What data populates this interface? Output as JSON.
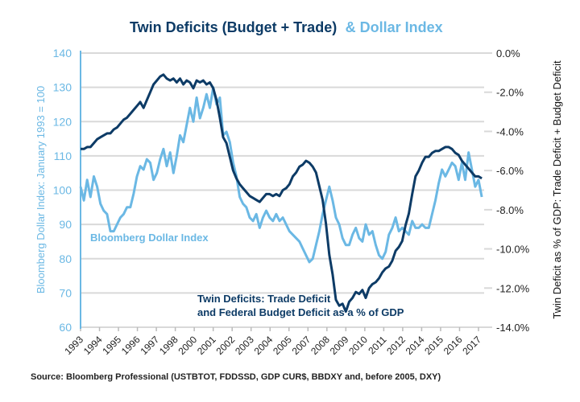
{
  "chart_data": {
    "type": "line",
    "title": {
      "part1": "Twin Deficits (Budget + Trade)",
      "part2": "& Dollar Index"
    },
    "colors": {
      "dollar": "#6bb8e4",
      "deficit": "#0d3b66",
      "grid": "#d9d9d9"
    },
    "y_left": {
      "label": "Bloomberg Dollar Index: January 1993 = 100",
      "range": [
        60,
        140
      ],
      "ticks": [
        "60",
        "70",
        "80",
        "90",
        "100",
        "110",
        "120",
        "130",
        "140"
      ]
    },
    "y_right": {
      "label": "Twin Deficit as % of GDP: Trade Deficit + Budget Deficit",
      "range": [
        -14,
        0
      ],
      "ticks": [
        "-14.0%",
        "-12.0%",
        "-10.0%",
        "-8.0%",
        "-6.0%",
        "-4.0%",
        "-2.0%",
        "0.0%"
      ]
    },
    "x_axis": {
      "range": [
        1993,
        2017.3
      ],
      "tick_labels": [
        "1993",
        "1994",
        "1995",
        "1996",
        "1997",
        "1998",
        "2000",
        "2001",
        "2002",
        "2003",
        "2004",
        "2005",
        "2007",
        "2008",
        "2009",
        "2010",
        "2011",
        "2012",
        "2014",
        "2015",
        "2016",
        "2017"
      ]
    },
    "grid": true,
    "annotations": {
      "dollar_label": "Bloomberg Dollar Index",
      "deficit_label_line1": "Twin Deficits: Trade Deficit",
      "deficit_label_line2": "and Federal Budget Deficit as a % of GDP"
    },
    "series": [
      {
        "name": "Bloomberg Dollar Index",
        "axis": "left",
        "x": [
          1993.0,
          1993.2,
          1993.4,
          1993.6,
          1993.8,
          1994.0,
          1994.2,
          1994.4,
          1994.6,
          1994.8,
          1995.0,
          1995.2,
          1995.4,
          1995.6,
          1995.8,
          1996.0,
          1996.2,
          1996.4,
          1996.6,
          1996.8,
          1997.0,
          1997.2,
          1997.4,
          1997.6,
          1997.8,
          1998.0,
          1998.2,
          1998.4,
          1998.6,
          1998.8,
          1999.0,
          1999.2,
          1999.4,
          1999.6,
          1999.8,
          2000.0,
          2000.2,
          2000.4,
          2000.6,
          2000.8,
          2001.0,
          2001.2,
          2001.4,
          2001.6,
          2001.8,
          2002.0,
          2002.2,
          2002.4,
          2002.6,
          2002.8,
          2003.0,
          2003.2,
          2003.4,
          2003.6,
          2003.8,
          2004.0,
          2004.2,
          2004.4,
          2004.6,
          2004.8,
          2005.0,
          2005.2,
          2005.4,
          2005.6,
          2005.8,
          2006.0,
          2006.2,
          2006.4,
          2006.6,
          2006.8,
          2007.0,
          2007.2,
          2007.4,
          2007.6,
          2007.8,
          2008.0,
          2008.2,
          2008.4,
          2008.6,
          2008.8,
          2009.0,
          2009.2,
          2009.4,
          2009.6,
          2009.8,
          2010.0,
          2010.2,
          2010.4,
          2010.6,
          2010.8,
          2011.0,
          2011.2,
          2011.4,
          2011.6,
          2011.8,
          2012.0,
          2012.2,
          2012.4,
          2012.6,
          2012.8,
          2013.0,
          2013.2,
          2013.4,
          2013.6,
          2013.8,
          2014.0,
          2014.2,
          2014.4,
          2014.6,
          2014.8,
          2015.0,
          2015.2,
          2015.4,
          2015.6,
          2015.8,
          2016.0,
          2016.2,
          2016.4,
          2016.6,
          2016.8,
          2017.0,
          2017.2
        ],
        "values": [
          101,
          97,
          103,
          98,
          104,
          101,
          96,
          94,
          93,
          88,
          88,
          90,
          92,
          93,
          95,
          95,
          99,
          104,
          107,
          106,
          109,
          108,
          103,
          105,
          109,
          112,
          107,
          111,
          105,
          110,
          116,
          114,
          119,
          124,
          120,
          127,
          121,
          124,
          128,
          124,
          130,
          125,
          127,
          116,
          117,
          114,
          108,
          104,
          98,
          96,
          95,
          92,
          91,
          93,
          89,
          92,
          94,
          92,
          91,
          93,
          91,
          92,
          90,
          88,
          87,
          86,
          85,
          83,
          81,
          79,
          80,
          84,
          88,
          93,
          97,
          101,
          97,
          92,
          90,
          86,
          84,
          84,
          87,
          89,
          86,
          85,
          90,
          87,
          88,
          84,
          81,
          80,
          82,
          87,
          89,
          92,
          88,
          89,
          88,
          87,
          91,
          89,
          89,
          90,
          89,
          89,
          93,
          97,
          102,
          106,
          104,
          106,
          108,
          107,
          103,
          108,
          103,
          111,
          106,
          101,
          103,
          98
        ]
      },
      {
        "name": "Twin Deficits: Trade Deficit and Federal Budget Deficit as a % of GDP",
        "axis": "right",
        "x": [
          1993.0,
          1993.2,
          1993.4,
          1993.6,
          1993.8,
          1994.0,
          1994.2,
          1994.4,
          1994.6,
          1994.8,
          1995.0,
          1995.2,
          1995.4,
          1995.6,
          1995.8,
          1996.0,
          1996.2,
          1996.4,
          1996.6,
          1996.8,
          1997.0,
          1997.2,
          1997.4,
          1997.6,
          1997.8,
          1998.0,
          1998.2,
          1998.4,
          1998.6,
          1998.8,
          1999.0,
          1999.2,
          1999.4,
          1999.6,
          1999.8,
          2000.0,
          2000.2,
          2000.4,
          2000.6,
          2000.8,
          2001.0,
          2001.2,
          2001.4,
          2001.6,
          2001.8,
          2002.0,
          2002.2,
          2002.4,
          2002.6,
          2002.8,
          2003.0,
          2003.2,
          2003.4,
          2003.6,
          2003.8,
          2004.0,
          2004.2,
          2004.4,
          2004.6,
          2004.8,
          2005.0,
          2005.2,
          2005.4,
          2005.6,
          2005.8,
          2006.0,
          2006.2,
          2006.4,
          2006.6,
          2006.8,
          2007.0,
          2007.2,
          2007.4,
          2007.6,
          2007.8,
          2008.0,
          2008.2,
          2008.4,
          2008.6,
          2008.8,
          2009.0,
          2009.2,
          2009.4,
          2009.6,
          2009.8,
          2010.0,
          2010.2,
          2010.4,
          2010.6,
          2010.8,
          2011.0,
          2011.2,
          2011.4,
          2011.6,
          2011.8,
          2012.0,
          2012.2,
          2012.4,
          2012.6,
          2012.8,
          2013.0,
          2013.2,
          2013.4,
          2013.6,
          2013.8,
          2014.0,
          2014.2,
          2014.4,
          2014.6,
          2014.8,
          2015.0,
          2015.2,
          2015.4,
          2015.6,
          2015.8,
          2016.0,
          2016.2,
          2016.4,
          2016.6,
          2016.8,
          2017.0,
          2017.2
        ],
        "values": [
          -4.9,
          -4.9,
          -4.8,
          -4.8,
          -4.6,
          -4.4,
          -4.3,
          -4.2,
          -4.1,
          -4.1,
          -3.9,
          -3.8,
          -3.6,
          -3.4,
          -3.3,
          -3.1,
          -2.9,
          -2.7,
          -2.5,
          -2.8,
          -2.4,
          -2.0,
          -1.6,
          -1.4,
          -1.2,
          -1.1,
          -1.3,
          -1.4,
          -1.3,
          -1.5,
          -1.3,
          -1.6,
          -1.4,
          -1.5,
          -1.8,
          -1.4,
          -1.5,
          -1.4,
          -1.6,
          -1.5,
          -1.8,
          -2.4,
          -3.3,
          -4.3,
          -4.6,
          -5.3,
          -6.0,
          -6.4,
          -6.7,
          -6.9,
          -7.1,
          -7.3,
          -7.4,
          -7.5,
          -7.6,
          -7.4,
          -7.2,
          -7.2,
          -7.3,
          -7.2,
          -7.3,
          -7.0,
          -6.9,
          -6.7,
          -6.3,
          -6.1,
          -5.8,
          -5.7,
          -5.5,
          -5.6,
          -5.8,
          -6.1,
          -6.8,
          -7.5,
          -8.7,
          -10.3,
          -11.3,
          -12.6,
          -12.9,
          -12.8,
          -13.2,
          -12.7,
          -12.5,
          -12.2,
          -12.3,
          -12.1,
          -12.5,
          -12.0,
          -11.8,
          -11.7,
          -11.5,
          -11.2,
          -11.0,
          -10.9,
          -10.6,
          -10.1,
          -9.9,
          -9.6,
          -8.8,
          -8.2,
          -7.2,
          -6.3,
          -6.0,
          -5.6,
          -5.3,
          -5.3,
          -5.1,
          -5.0,
          -5.0,
          -4.9,
          -4.8,
          -4.8,
          -4.9,
          -5.1,
          -5.2,
          -5.5,
          -5.7,
          -5.9,
          -6.1,
          -6.3,
          -6.3,
          -6.4
        ]
      }
    ],
    "source": "Source: Bloomberg Professional (USTBTOT, FDDSSD, GDP CUR$, BBDXY and, before 2005, DXY)"
  }
}
